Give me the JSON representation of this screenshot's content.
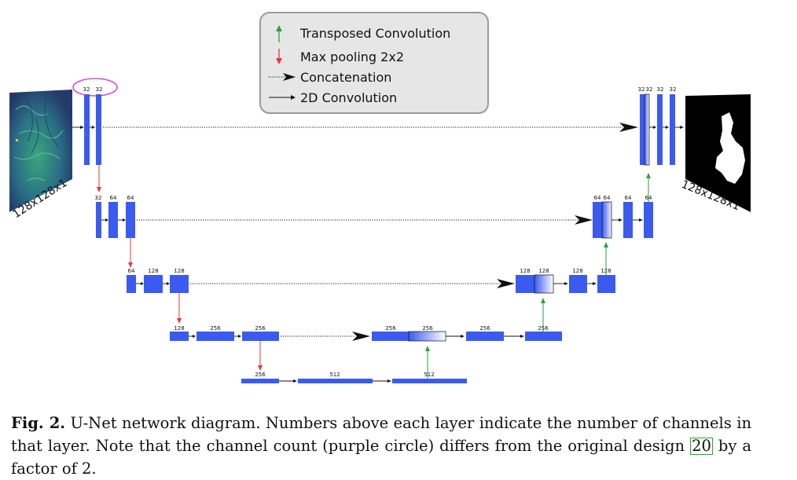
{
  "legend": {
    "transposed": "Transposed Convolution",
    "maxpool": "Max pooling 2x2",
    "concat": "Concatenation",
    "conv2d": "2D Convolution"
  },
  "input_label": "128x128x1",
  "output_label": "128x128x1",
  "layers": {
    "e1": [
      "32",
      "32"
    ],
    "e2": [
      "32",
      "64",
      "64"
    ],
    "e3": [
      "64",
      "128",
      "128"
    ],
    "e4": [
      "128",
      "256",
      "256"
    ],
    "b": [
      "256",
      "512",
      "512"
    ],
    "d4": [
      "256",
      "256",
      "256",
      "256"
    ],
    "d3": [
      "128",
      "128",
      "128",
      "128"
    ],
    "d2": [
      "64",
      "64",
      "64",
      "64"
    ],
    "d1": [
      "32",
      "32",
      "32",
      "32"
    ]
  },
  "caption": {
    "label": "Fig. 2.",
    "text_before_ref": "U-Net network diagram. Numbers above each layer indicate the number of channels in that layer. Note that the channel count (purple circle) differs from the original design",
    "ref": "20",
    "text_after_ref": "by a factor of 2."
  },
  "colors": {
    "layer": "#3b5bf0",
    "up_arrow": "#2e9e44",
    "down_arrow": "#e03a3a",
    "highlight": "#d14fd8"
  }
}
